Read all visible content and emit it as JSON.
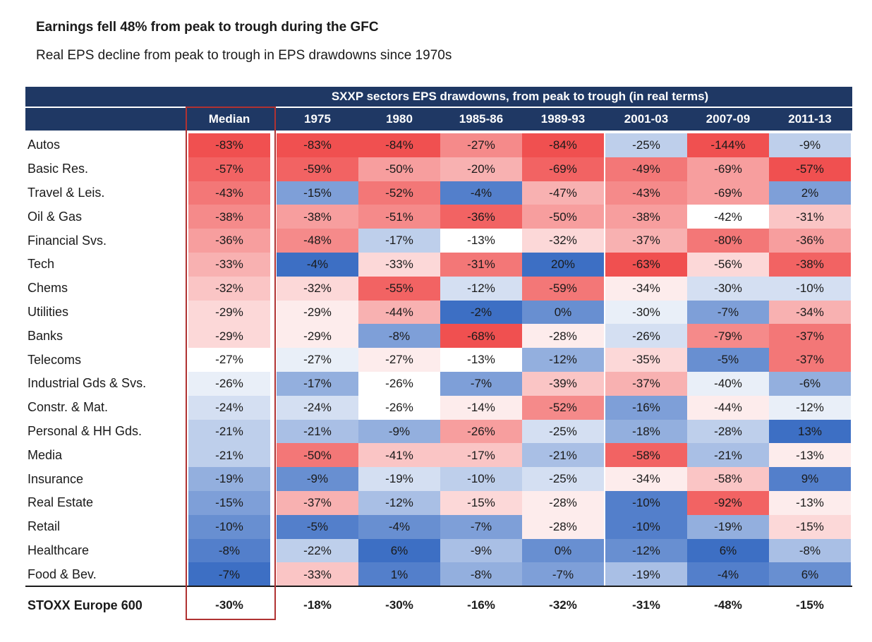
{
  "title": "Earnings fell 48% from peak to trough during the GFC",
  "subtitle": "Real EPS decline from peak to trough in EPS drawdowns since 1970s",
  "chart_data": {
    "type": "heatmap",
    "table_title": "SXXP sectors EPS drawdowns, from peak to trough (in real terms)",
    "columns": [
      "Median",
      "1975",
      "1980",
      "1985-86",
      "1989-93",
      "2001-03",
      "2007-09",
      "2011-13"
    ],
    "highlighted_column": "Median",
    "rows": [
      {
        "label": "Autos",
        "values": [
          -83,
          -83,
          -84,
          -27,
          -84,
          -25,
          -144,
          -9
        ]
      },
      {
        "label": "Basic Res.",
        "values": [
          -57,
          -59,
          -50,
          -20,
          -69,
          -49,
          -69,
          -57
        ]
      },
      {
        "label": "Travel & Leis.",
        "values": [
          -43,
          -15,
          -52,
          -4,
          -47,
          -43,
          -69,
          2
        ]
      },
      {
        "label": "Oil & Gas",
        "values": [
          -38,
          -38,
          -51,
          -36,
          -50,
          -38,
          -42,
          -31
        ]
      },
      {
        "label": "Financial Svs.",
        "values": [
          -36,
          -48,
          -17,
          -13,
          -32,
          -37,
          -80,
          -36
        ]
      },
      {
        "label": "Tech",
        "values": [
          -33,
          -4,
          -33,
          -31,
          20,
          -63,
          -56,
          -38
        ]
      },
      {
        "label": "Chems",
        "values": [
          -32,
          -32,
          -55,
          -12,
          -59,
          -34,
          -30,
          -10
        ]
      },
      {
        "label": "Utilities",
        "values": [
          -29,
          -29,
          -44,
          -2,
          0,
          -30,
          -7,
          -34
        ]
      },
      {
        "label": "Banks",
        "values": [
          -29,
          -29,
          -8,
          -68,
          -28,
          -26,
          -79,
          -37
        ]
      },
      {
        "label": "Telecoms",
        "values": [
          -27,
          -27,
          -27,
          -13,
          -12,
          -35,
          -5,
          -37
        ]
      },
      {
        "label": "Industrial Gds & Svs.",
        "values": [
          -26,
          -17,
          -26,
          -7,
          -39,
          -37,
          -40,
          -6
        ]
      },
      {
        "label": "Constr. & Mat.",
        "values": [
          -24,
          -24,
          -26,
          -14,
          -52,
          -16,
          -44,
          -12
        ]
      },
      {
        "label": "Personal & HH Gds.",
        "values": [
          -21,
          -21,
          -9,
          -26,
          -25,
          -18,
          -28,
          13
        ]
      },
      {
        "label": "Media",
        "values": [
          -21,
          -50,
          -41,
          -17,
          -21,
          -58,
          -21,
          -13
        ]
      },
      {
        "label": "Insurance",
        "values": [
          -19,
          -9,
          -19,
          -10,
          -25,
          -34,
          -58,
          9
        ]
      },
      {
        "label": "Real Estate",
        "values": [
          -15,
          -37,
          -12,
          -15,
          -28,
          -10,
          -92,
          -13
        ]
      },
      {
        "label": "Retail",
        "values": [
          -10,
          -5,
          -4,
          -7,
          -28,
          -10,
          -19,
          -15
        ]
      },
      {
        "label": "Healthcare",
        "values": [
          -8,
          -22,
          6,
          -9,
          0,
          -12,
          6,
          -8
        ]
      },
      {
        "label": "Food & Bev.",
        "values": [
          -7,
          -33,
          1,
          -8,
          -7,
          -19,
          -4,
          6
        ]
      }
    ],
    "total_row": {
      "label": "STOXX Europe 600",
      "values": [
        -30,
        -18,
        -30,
        -16,
        -32,
        -31,
        -48,
        -15
      ]
    },
    "value_suffix": "%",
    "colors": {
      "header_bg": "#1f3864",
      "negative": "#f05050",
      "neutral": "#ffffff",
      "positive": "#3d6fc4",
      "highlight_border": "#b03232"
    }
  }
}
